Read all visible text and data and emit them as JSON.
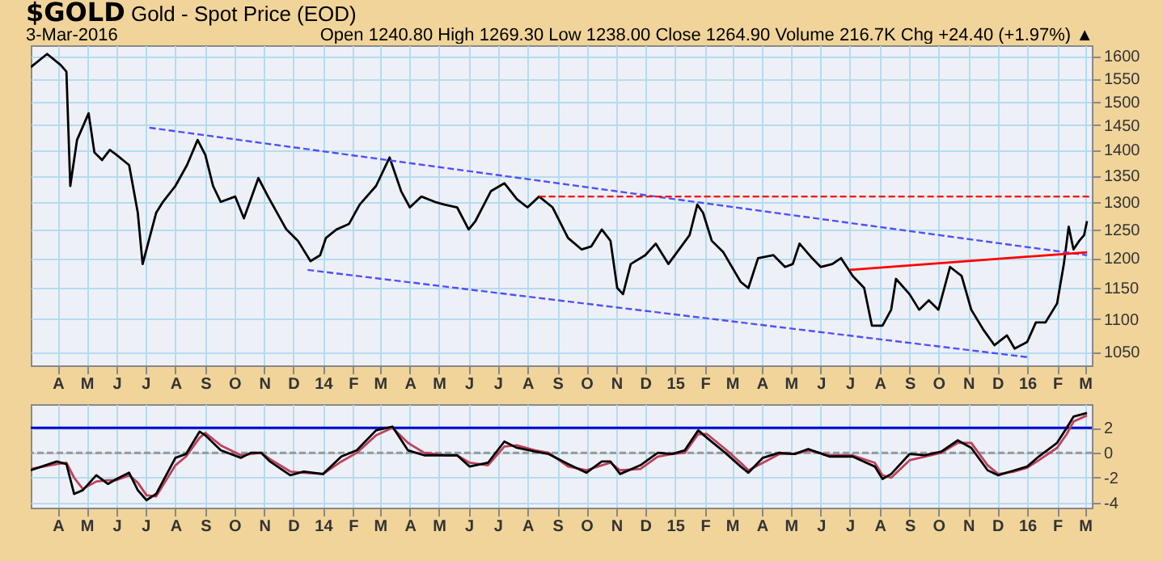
{
  "chart_data": [
    {
      "type": "line",
      "title": "$GOLD",
      "subtitle": "Gold - Spot Price (EOD)",
      "annotations": [
        "3-Mar-2016",
        "Open 1240.80 High 1269.30 Low 1238.00 Close 1264.90 Volume 216.7K Chg +24.40 (+1.97%) ▲"
      ],
      "log": true,
      "grid": true,
      "tick_labels": "xy",
      "xlim": [
        "2013-03-04",
        "2016-03-08"
      ],
      "xticks": [
        {
          "value": "2013-04-01",
          "label": "A"
        },
        {
          "value": "2013-05-01",
          "label": "M"
        },
        {
          "value": "2013-06-01",
          "label": "J"
        },
        {
          "value": "2013-07-01",
          "label": "J"
        },
        {
          "value": "2013-08-01",
          "label": "A"
        },
        {
          "value": "2013-09-01",
          "label": "S"
        },
        {
          "value": "2013-10-01",
          "label": "O"
        },
        {
          "value": "2013-11-01",
          "label": "N"
        },
        {
          "value": "2013-12-01",
          "label": "D"
        },
        {
          "value": "2014-01-01",
          "label": "14"
        },
        {
          "value": "2014-02-01",
          "label": "F"
        },
        {
          "value": "2014-03-01",
          "label": "M"
        },
        {
          "value": "2014-04-01",
          "label": "A"
        },
        {
          "value": "2014-05-01",
          "label": "M"
        },
        {
          "value": "2014-06-01",
          "label": "J"
        },
        {
          "value": "2014-07-01",
          "label": "J"
        },
        {
          "value": "2014-08-01",
          "label": "A"
        },
        {
          "value": "2014-09-01",
          "label": "S"
        },
        {
          "value": "2014-10-01",
          "label": "O"
        },
        {
          "value": "2014-11-01",
          "label": "N"
        },
        {
          "value": "2014-12-01",
          "label": "D"
        },
        {
          "value": "2015-01-01",
          "label": "15"
        },
        {
          "value": "2015-02-01",
          "label": "F"
        },
        {
          "value": "2015-03-01",
          "label": "M"
        },
        {
          "value": "2015-04-01",
          "label": "A"
        },
        {
          "value": "2015-05-01",
          "label": "M"
        },
        {
          "value": "2015-06-01",
          "label": "J"
        },
        {
          "value": "2015-07-01",
          "label": "J"
        },
        {
          "value": "2015-08-01",
          "label": "A"
        },
        {
          "value": "2015-09-01",
          "label": "S"
        },
        {
          "value": "2015-10-01",
          "label": "O"
        },
        {
          "value": "2015-11-01",
          "label": "N"
        },
        {
          "value": "2015-12-01",
          "label": "D"
        },
        {
          "value": "2016-01-01",
          "label": "16"
        },
        {
          "value": "2016-02-01",
          "label": "F"
        },
        {
          "value": "2016-03-01",
          "label": "M"
        }
      ],
      "ylim": [
        1030,
        1625
      ],
      "yticks": [
        1050,
        1100,
        1150,
        1200,
        1250,
        1300,
        1350,
        1400,
        1450,
        1500,
        1550,
        1600
      ],
      "series": [
        {
          "color": "#000000",
          "x": [
            "2013-03-04",
            "2013-03-21",
            "2013-04-04",
            "2013-04-10",
            "2013-04-14",
            "2013-04-21",
            "2013-05-03",
            "2013-05-09",
            "2013-05-17",
            "2013-05-25",
            "2013-06-01",
            "2013-06-14",
            "2013-06-23",
            "2013-06-28",
            "2013-07-12",
            "2013-07-19",
            "2013-08-01",
            "2013-08-13",
            "2013-08-24",
            "2013-09-01",
            "2013-09-09",
            "2013-09-17",
            "2013-10-02",
            "2013-10-11",
            "2013-10-26",
            "2013-11-05",
            "2013-11-24",
            "2013-12-06",
            "2013-12-19",
            "2013-12-29",
            "2014-01-04",
            "2014-01-15",
            "2014-01-28",
            "2014-02-08",
            "2014-02-25",
            "2014-03-11",
            "2014-03-23",
            "2014-04-01",
            "2014-04-13",
            "2014-04-27",
            "2014-05-07",
            "2014-05-20",
            "2014-06-01",
            "2014-06-08",
            "2014-06-24",
            "2014-07-08",
            "2014-07-21",
            "2014-08-01",
            "2014-08-13",
            "2014-08-27",
            "2014-09-12",
            "2014-09-26",
            "2014-10-06",
            "2014-10-17",
            "2014-10-26",
            "2014-11-02",
            "2014-11-08",
            "2014-11-16",
            "2014-12-01",
            "2014-12-12",
            "2014-12-25",
            "2015-01-16",
            "2015-01-24",
            "2015-01-30",
            "2015-02-08",
            "2015-02-20",
            "2015-03-10",
            "2015-03-18",
            "2015-03-28",
            "2015-04-13",
            "2015-04-25",
            "2015-05-03",
            "2015-05-10",
            "2015-05-23",
            "2015-06-01",
            "2015-06-13",
            "2015-06-22",
            "2015-07-04",
            "2015-07-16",
            "2015-07-24",
            "2015-08-04",
            "2015-08-13",
            "2015-08-18",
            "2015-09-01",
            "2015-09-11",
            "2015-09-21",
            "2015-10-01",
            "2015-10-13",
            "2015-10-25",
            "2015-11-04",
            "2015-11-16",
            "2015-11-28",
            "2015-12-11",
            "2015-12-19",
            "2016-01-01",
            "2016-01-10",
            "2016-01-20",
            "2016-02-01",
            "2016-02-08",
            "2016-02-13",
            "2016-02-18",
            "2016-02-24",
            "2016-02-29",
            "2016-03-03"
          ],
          "values": [
            1575,
            1605,
            1580,
            1565,
            1330,
            1420,
            1475,
            1395,
            1380,
            1400,
            1390,
            1370,
            1280,
            1190,
            1280,
            1300,
            1330,
            1370,
            1420,
            1390,
            1330,
            1300,
            1310,
            1270,
            1345,
            1310,
            1250,
            1230,
            1195,
            1205,
            1235,
            1250,
            1260,
            1295,
            1330,
            1385,
            1320,
            1290,
            1310,
            1300,
            1295,
            1290,
            1250,
            1265,
            1320,
            1335,
            1305,
            1290,
            1310,
            1290,
            1235,
            1215,
            1220,
            1250,
            1230,
            1150,
            1140,
            1190,
            1205,
            1225,
            1190,
            1240,
            1295,
            1280,
            1230,
            1210,
            1160,
            1150,
            1200,
            1205,
            1185,
            1190,
            1225,
            1200,
            1185,
            1190,
            1200,
            1170,
            1150,
            1090,
            1090,
            1115,
            1165,
            1140,
            1115,
            1130,
            1115,
            1185,
            1170,
            1115,
            1085,
            1060,
            1075,
            1055,
            1065,
            1095,
            1095,
            1125,
            1190,
            1255,
            1215,
            1230,
            1240,
            1265
          ]
        },
        {
          "color": "#5050ff",
          "line_style": "dashed",
          "x": [
            "2013-07-05",
            "2016-03-03"
          ],
          "values": [
            1445,
            1205
          ]
        },
        {
          "color": "#5050ff",
          "line_style": "dashed",
          "x": [
            "2013-12-16",
            "2016-01-02"
          ],
          "values": [
            1180,
            1042
          ]
        },
        {
          "color": "#ff0000",
          "x": [
            "2015-07-01",
            "2016-03-03"
          ],
          "values": [
            1180,
            1210
          ]
        },
        {
          "color": "#ff0000",
          "line_style": "dashed",
          "x": [
            "2014-08-13",
            "2016-03-08"
          ],
          "values": [
            1310,
            1310
          ]
        }
      ]
    },
    {
      "type": "line",
      "grid": true,
      "tick_labels": "xy",
      "xlim": [
        "2013-03-04",
        "2016-03-08"
      ],
      "xticks": [
        {
          "value": "2013-04-01",
          "label": "A"
        },
        {
          "value": "2013-05-01",
          "label": "M"
        },
        {
          "value": "2013-06-01",
          "label": "J"
        },
        {
          "value": "2013-07-01",
          "label": "J"
        },
        {
          "value": "2013-08-01",
          "label": "A"
        },
        {
          "value": "2013-09-01",
          "label": "S"
        },
        {
          "value": "2013-10-01",
          "label": "O"
        },
        {
          "value": "2013-11-01",
          "label": "N"
        },
        {
          "value": "2013-12-01",
          "label": "D"
        },
        {
          "value": "2014-01-01",
          "label": "14"
        },
        {
          "value": "2014-02-01",
          "label": "F"
        },
        {
          "value": "2014-03-01",
          "label": "M"
        },
        {
          "value": "2014-04-01",
          "label": "A"
        },
        {
          "value": "2014-05-01",
          "label": "M"
        },
        {
          "value": "2014-06-01",
          "label": "J"
        },
        {
          "value": "2014-07-01",
          "label": "J"
        },
        {
          "value": "2014-08-01",
          "label": "A"
        },
        {
          "value": "2014-09-01",
          "label": "S"
        },
        {
          "value": "2014-10-01",
          "label": "O"
        },
        {
          "value": "2014-11-01",
          "label": "N"
        },
        {
          "value": "2014-12-01",
          "label": "D"
        },
        {
          "value": "2015-01-01",
          "label": "15"
        },
        {
          "value": "2015-02-01",
          "label": "F"
        },
        {
          "value": "2015-03-01",
          "label": "M"
        },
        {
          "value": "2015-04-01",
          "label": "A"
        },
        {
          "value": "2015-05-01",
          "label": "M"
        },
        {
          "value": "2015-06-01",
          "label": "J"
        },
        {
          "value": "2015-07-01",
          "label": "J"
        },
        {
          "value": "2015-08-01",
          "label": "A"
        },
        {
          "value": "2015-09-01",
          "label": "S"
        },
        {
          "value": "2015-10-01",
          "label": "O"
        },
        {
          "value": "2015-11-01",
          "label": "N"
        },
        {
          "value": "2015-12-01",
          "label": "D"
        },
        {
          "value": "2016-01-01",
          "label": "16"
        },
        {
          "value": "2016-02-01",
          "label": "F"
        },
        {
          "value": "2016-03-01",
          "label": "M"
        }
      ],
      "ylim": [
        -4.4,
        3.9
      ],
      "yticks": [
        -4,
        -2,
        0,
        2
      ],
      "x": [
        "2013-03-04",
        "2013-03-31",
        "2013-04-10",
        "2013-04-18",
        "2013-04-27",
        "2013-05-11",
        "2013-05-23",
        "2013-06-01",
        "2013-06-14",
        "2013-06-23",
        "2013-07-02",
        "2013-07-12",
        "2013-08-01",
        "2013-08-12",
        "2013-08-26",
        "2013-09-01",
        "2013-09-17",
        "2013-10-08",
        "2013-10-18",
        "2013-10-29",
        "2013-11-07",
        "2013-11-28",
        "2013-12-12",
        "2014-01-01",
        "2014-01-20",
        "2014-02-05",
        "2014-02-25",
        "2014-03-14",
        "2014-03-30",
        "2014-04-16",
        "2014-05-08",
        "2014-05-20",
        "2014-06-02",
        "2014-06-21",
        "2014-07-08",
        "2014-07-21",
        "2014-08-09",
        "2014-08-23",
        "2014-09-12",
        "2014-10-01",
        "2014-10-17",
        "2014-10-26",
        "2014-11-05",
        "2014-11-26",
        "2014-12-14",
        "2014-12-29",
        "2015-01-11",
        "2015-01-25",
        "2015-02-03",
        "2015-02-22",
        "2015-03-10",
        "2015-03-18",
        "2015-04-02",
        "2015-04-19",
        "2015-05-05",
        "2015-05-19",
        "2015-06-10",
        "2015-07-04",
        "2015-07-27",
        "2015-08-04",
        "2015-08-13",
        "2015-09-01",
        "2015-09-17",
        "2015-10-04",
        "2015-10-21",
        "2015-11-04",
        "2015-11-21",
        "2015-12-02",
        "2015-12-19",
        "2016-01-01",
        "2016-01-13",
        "2016-02-01",
        "2016-02-11",
        "2016-02-18",
        "2016-03-03"
      ],
      "series": [
        {
          "color": "#c0405a",
          "values": [
            -1.3,
            -0.9,
            -0.8,
            -2.0,
            -2.9,
            -2.3,
            -2.2,
            -2.2,
            -1.8,
            -2.4,
            -3.4,
            -3.5,
            -1.0,
            -0.3,
            1.2,
            1.6,
            0.6,
            -0.2,
            -0.1,
            0.0,
            -0.5,
            -1.5,
            -1.6,
            -1.7,
            -0.7,
            0.0,
            1.4,
            2.0,
            0.8,
            0.0,
            -0.2,
            -0.2,
            -0.8,
            -1.0,
            0.5,
            0.6,
            0.2,
            0.0,
            -1.1,
            -1.4,
            -1.0,
            -0.8,
            -1.4,
            -1.3,
            -0.3,
            -0.1,
            0.0,
            1.5,
            1.5,
            0.3,
            -0.8,
            -1.4,
            -0.8,
            -0.1,
            -0.1,
            0.2,
            -0.2,
            -0.2,
            -0.8,
            -1.8,
            -2.0,
            -0.6,
            -0.3,
            0.0,
            0.8,
            0.8,
            -1.0,
            -1.7,
            -1.5,
            -1.2,
            -0.6,
            0.4,
            1.5,
            2.5,
            3.0
          ]
        },
        {
          "color": "#000000",
          "values": [
            -1.4,
            -0.7,
            -0.9,
            -3.3,
            -3.0,
            -1.8,
            -2.5,
            -2.1,
            -1.6,
            -3.0,
            -3.8,
            -3.3,
            -0.4,
            -0.1,
            1.7,
            1.4,
            0.2,
            -0.4,
            0,
            0,
            -0.7,
            -1.8,
            -1.5,
            -1.7,
            -0.3,
            0.2,
            1.8,
            2.1,
            0.2,
            -0.2,
            -0.2,
            -0.2,
            -1.1,
            -0.8,
            0.9,
            0.4,
            0.1,
            -0.1,
            -0.9,
            -1.6,
            -0.7,
            -0.7,
            -1.7,
            -1.0,
            0,
            -0.1,
            0.2,
            1.8,
            1.2,
            0,
            -1.1,
            -1.6,
            -0.4,
            0,
            -0.1,
            0.3,
            -0.3,
            -0.3,
            -1.1,
            -2.1,
            -1.7,
            -0.1,
            -0.2,
            0.1,
            1.0,
            0.4,
            -1.4,
            -1.8,
            -1.4,
            -1.1,
            -0.3,
            0.8,
            2.0,
            2.9,
            3.2
          ]
        }
      ],
      "ref_lines": [
        {
          "axis": "y",
          "value": 2,
          "color": "#0000cc"
        },
        {
          "axis": "y",
          "value": 0,
          "color": "#999999",
          "line_style": "dashed"
        }
      ]
    }
  ]
}
